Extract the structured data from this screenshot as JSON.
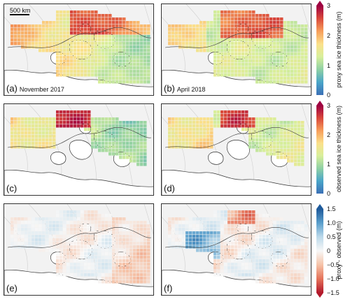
{
  "scale_bar": {
    "label": "500 km"
  },
  "panels": [
    {
      "label": "(a)",
      "date": "November 2017",
      "mode": "proxy_nov"
    },
    {
      "label": "(b)",
      "date": "April 2018",
      "mode": "proxy_apr"
    },
    {
      "label": "(c)",
      "date": "",
      "mode": "obs_nov"
    },
    {
      "label": "(d)",
      "date": "",
      "mode": "obs_apr"
    },
    {
      "label": "(e)",
      "date": "",
      "mode": "diff_nov"
    },
    {
      "label": "(f)",
      "date": "",
      "mode": "diff_apr"
    }
  ],
  "colorbars": [
    {
      "label": "proxy sea ice thickness (m)",
      "ticks": [
        "0",
        "1",
        "2",
        "3"
      ],
      "range": [
        0,
        3
      ],
      "colormap": "spectral"
    },
    {
      "label": "observed sea ice thickness (m)",
      "ticks": [
        "0",
        "1",
        "2",
        "3"
      ],
      "range": [
        0,
        3
      ],
      "colormap": "spectral"
    },
    {
      "label": "proxy - observed (m)",
      "ticks": [
        "−1.5",
        "−1.0",
        "−0.5",
        "0",
        "0.5",
        "1.0",
        "1.5"
      ],
      "range": [
        -1.5,
        1.5
      ],
      "colormap": "diverging-red-blue"
    }
  ],
  "colors": {
    "land": "#ffffff",
    "ocean_outside": "#f2f2f2",
    "coast": "#333333"
  }
}
